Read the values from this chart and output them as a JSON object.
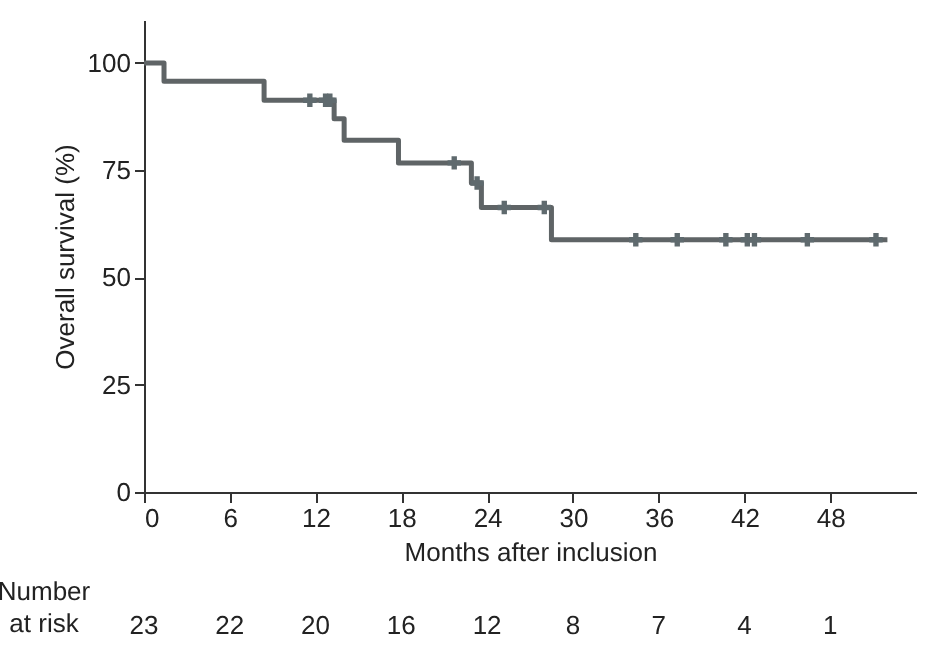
{
  "chart_data": {
    "type": "step",
    "xlabel": "Months after inclusion",
    "ylabel": "Overall survival (%)",
    "xlim": [
      0,
      54
    ],
    "xticks": [
      0,
      6,
      12,
      18,
      24,
      30,
      36,
      42,
      48
    ],
    "ylim": [
      0,
      110
    ],
    "yticks": [
      0,
      25,
      50,
      75,
      100
    ],
    "grid": false,
    "series": [
      {
        "type": "step",
        "color": "#5f6466",
        "marker": "none",
        "x": [
          0,
          1.4,
          8.4,
          13.3,
          14,
          17.8,
          22.9,
          23.6,
          28.5,
          52
        ],
        "values": [
          100,
          95.7,
          91.3,
          87,
          82,
          76.7,
          72,
          66.3,
          58.8,
          58.8
        ]
      },
      {
        "type": "scatter",
        "color": "#5f6a6e",
        "marker": "cross",
        "x": [
          11.6,
          12.7,
          13,
          21.7,
          23.3,
          25.2,
          28,
          34.4,
          37.3,
          40.7,
          42.2,
          42.7,
          46.4,
          51.2
        ],
        "values": [
          91.3,
          91.3,
          91.3,
          76.7,
          72,
          66.3,
          66.3,
          58.8,
          58.8,
          58.8,
          58.8,
          58.8,
          58.8,
          58.8
        ]
      }
    ],
    "annotations": [
      "Number\nat risk",
      "23",
      "22",
      "20",
      "16",
      "12",
      "8",
      "7",
      "4",
      "1"
    ]
  }
}
